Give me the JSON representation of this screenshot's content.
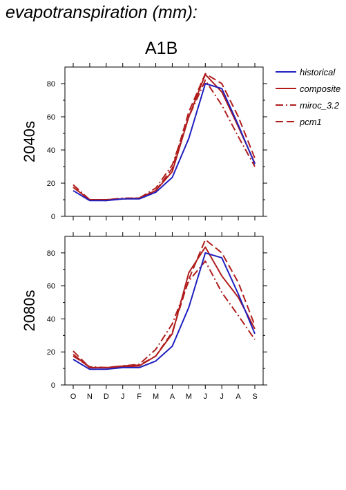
{
  "title": "evapotranspiration (mm):",
  "scenario": "A1B",
  "chart_data": [
    {
      "type": "line",
      "panel_label": "2040s",
      "ylim": [
        0,
        90
      ],
      "yticks": [
        0,
        20,
        40,
        60,
        80
      ],
      "categories": [
        "O",
        "N",
        "D",
        "J",
        "F",
        "M",
        "A",
        "M",
        "J",
        "J",
        "A",
        "S"
      ],
      "series": [
        {
          "name": "historical",
          "values": [
            15.5,
            9.5,
            9.5,
            10.5,
            10.5,
            14.5,
            23.5,
            47,
            80,
            77,
            55,
            31.5
          ]
        },
        {
          "name": "composite",
          "values": [
            17.5,
            10,
            10,
            10.5,
            11,
            15.5,
            27,
            60,
            85.5,
            75,
            54,
            32
          ]
        },
        {
          "name": "miroc_3.2",
          "values": [
            19,
            10,
            10,
            11,
            11,
            17,
            31,
            60,
            82,
            67,
            48,
            30
          ]
        },
        {
          "name": "pcm1",
          "values": [
            17.5,
            10,
            9.5,
            10.5,
            11,
            15.5,
            29,
            63,
            86,
            80,
            60,
            35
          ]
        }
      ]
    },
    {
      "type": "line",
      "panel_label": "2080s",
      "ylim": [
        0,
        90
      ],
      "yticks": [
        0,
        20,
        40,
        60,
        80
      ],
      "categories": [
        "O",
        "N",
        "D",
        "J",
        "F",
        "M",
        "A",
        "M",
        "J",
        "J",
        "A",
        "S"
      ],
      "series": [
        {
          "name": "historical",
          "values": [
            15.5,
            9.5,
            9.5,
            10.5,
            10.5,
            14.5,
            23.5,
            47,
            80,
            77,
            55,
            31
          ]
        },
        {
          "name": "composite",
          "values": [
            18.5,
            10.5,
            10.5,
            11,
            11.5,
            17.5,
            31,
            68,
            83.5,
            66,
            53,
            34
          ]
        },
        {
          "name": "miroc_3.2",
          "values": [
            17.5,
            11,
            10.5,
            11.5,
            12.5,
            21.5,
            37,
            63,
            75,
            56,
            42,
            27.5
          ]
        },
        {
          "name": "pcm1",
          "values": [
            20.5,
            10.5,
            10.5,
            11.5,
            12,
            17.5,
            32,
            64,
            88,
            80,
            62,
            36
          ]
        }
      ]
    }
  ],
  "legend": [
    {
      "name": "historical",
      "color": "#1f1fbf",
      "dash": "solid"
    },
    {
      "name": "composite",
      "color": "#b01c1c",
      "dash": "solid"
    },
    {
      "name": "miroc_3.2",
      "color": "#b01c1c",
      "dash": "dashdot"
    },
    {
      "name": "pcm1",
      "color": "#b01c1c",
      "dash": "dashed"
    }
  ]
}
